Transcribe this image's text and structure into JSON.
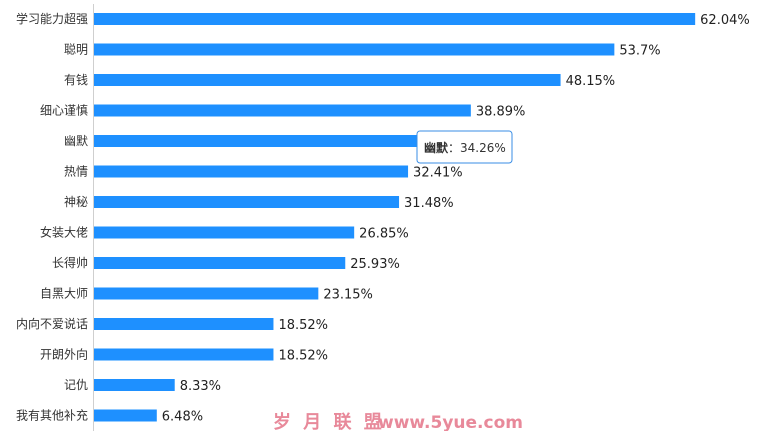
{
  "chart_data": {
    "type": "bar",
    "orientation": "horizontal",
    "categories": [
      "学习能力超强",
      "聪明",
      "有钱",
      "细心谨慎",
      "幽默",
      "热情",
      "神秘",
      "女装大佬",
      "长得帅",
      "自黑大师",
      "内向不爱说话",
      "开朗外向",
      "记仇",
      "我有其他补充"
    ],
    "values": [
      62.04,
      53.7,
      48.15,
      38.89,
      34.26,
      32.41,
      31.48,
      26.85,
      25.93,
      23.15,
      18.52,
      18.52,
      8.33,
      6.48
    ],
    "value_labels": [
      "62.04%",
      "53.7%",
      "48.15%",
      "38.89%",
      "34.26%",
      "32.41%",
      "31.48%",
      "26.85%",
      "25.93%",
      "23.15%",
      "18.52%",
      "18.52%",
      "8.33%",
      "6.48%"
    ],
    "title": "",
    "xlabel": "",
    "ylabel": "",
    "xlim": [
      0,
      100
    ],
    "grid": false,
    "bar_color": "#1e90ff"
  },
  "tooltip": {
    "category_index": 4,
    "label": "幽默",
    "separator": "：",
    "value": "34.26%"
  },
  "watermark": {
    "text": "岁 月 联 盟",
    "url": "www.5yue.com",
    "color": "#e8899a"
  }
}
